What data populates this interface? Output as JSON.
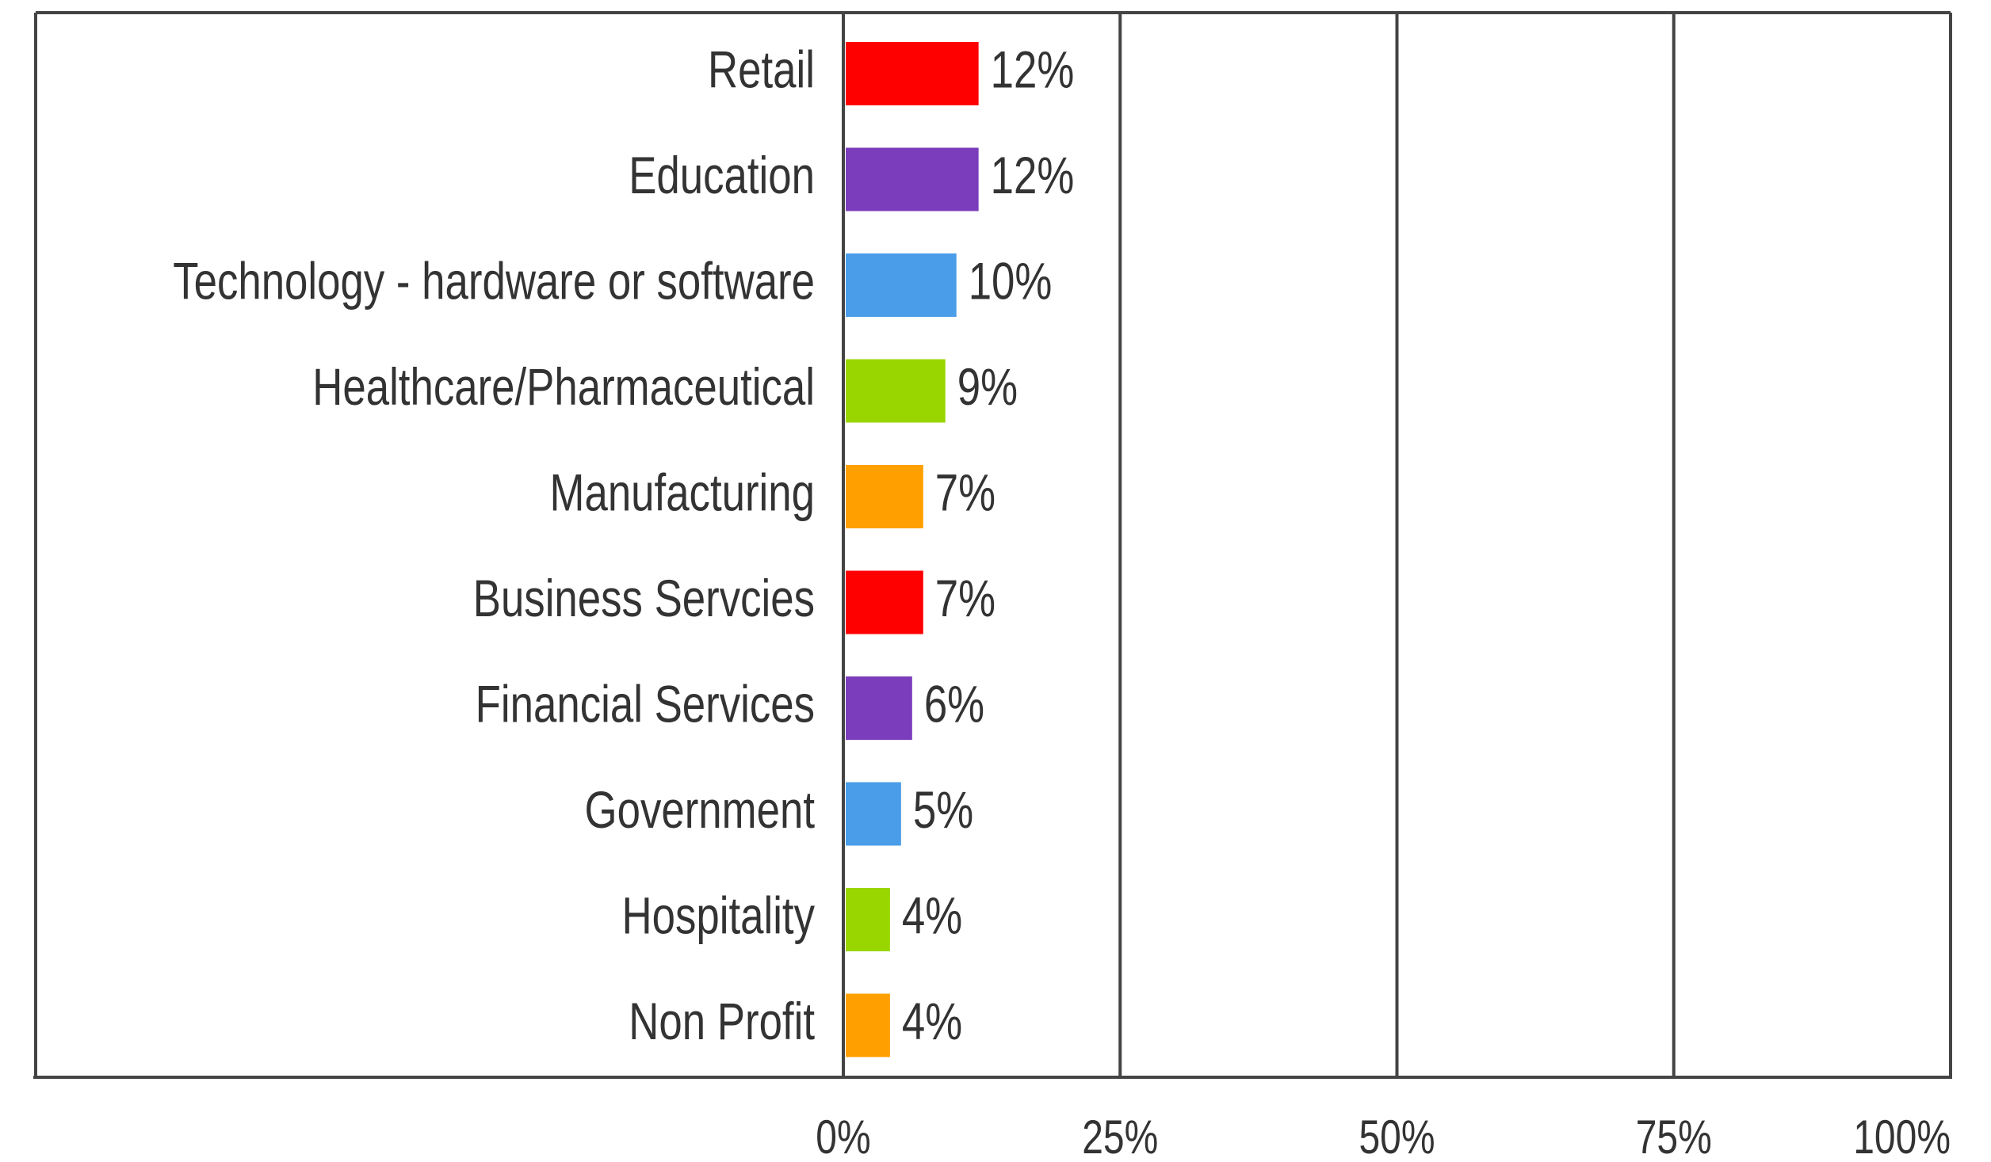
{
  "chart_data": {
    "type": "bar",
    "orientation": "horizontal",
    "categories": [
      "Retail",
      "Education",
      "Technology - hardware or software",
      "Healthcare/Pharmaceutical",
      "Manufacturing",
      "Business Servcies",
      "Financial Services",
      "Government",
      "Hospitality",
      "Non Profit"
    ],
    "values": [
      12,
      12,
      10,
      9,
      7,
      7,
      6,
      5,
      4,
      4
    ],
    "value_labels": [
      "12%",
      "12%",
      "10%",
      "9%",
      "7%",
      "7%",
      "6%",
      "5%",
      "4%",
      "4%"
    ],
    "colors": [
      "#ff0000",
      "#7b3dbb",
      "#4a9de8",
      "#99d600",
      "#ffa000",
      "#ff0000",
      "#7b3dbb",
      "#4a9de8",
      "#99d600",
      "#ffa000"
    ],
    "xlim": [
      0,
      100
    ],
    "xticks": [
      {
        "value": 0,
        "label": "0%"
      },
      {
        "value": 25,
        "label": "25%"
      },
      {
        "value": 50,
        "label": "50%"
      },
      {
        "value": 75,
        "label": "75%"
      },
      {
        "value": 100,
        "label": "100%"
      }
    ],
    "grid": true
  }
}
